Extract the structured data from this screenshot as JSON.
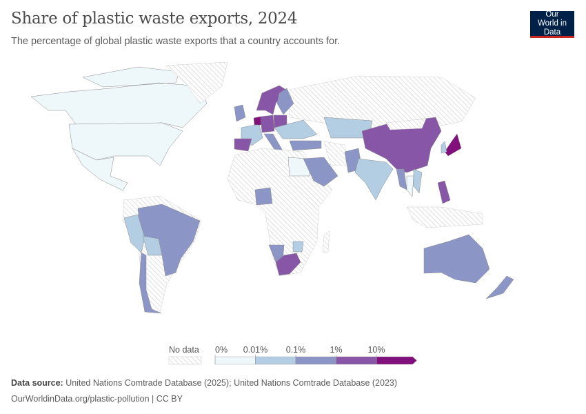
{
  "header": {
    "title": "Share of plastic waste exports, 2024",
    "subtitle": "The percentage of global plastic waste exports that a country accounts for.",
    "logo": "Our World in Data"
  },
  "chart_data": {
    "type": "map",
    "title": "Share of plastic waste exports, 2024",
    "legend": {
      "no_data_label": "No data",
      "tick_labels": [
        "0%",
        "0.01%",
        "0.1%",
        "1%",
        "10%"
      ],
      "bins": [
        {
          "range": "0–0.01%",
          "color": "#eef7fa"
        },
        {
          "range": "0.01–0.1%",
          "color": "#b3cde3"
        },
        {
          "range": "0.1–1%",
          "color": "#8c96c6"
        },
        {
          "range": "1–10%",
          "color": "#8856a7"
        },
        {
          "range": ">10%",
          "color": "#810f7c"
        }
      ],
      "no_data_color": "hatched"
    },
    "countries": [
      {
        "name": "Canada",
        "bin": 0
      },
      {
        "name": "United States",
        "bin": 0
      },
      {
        "name": "Mexico",
        "bin": 0
      },
      {
        "name": "Greenland",
        "bin": null
      },
      {
        "name": "South America (other)",
        "bin": null
      },
      {
        "name": "Brazil",
        "bin": 2
      },
      {
        "name": "Peru",
        "bin": 1
      },
      {
        "name": "Bolivia",
        "bin": 1
      },
      {
        "name": "Chile",
        "bin": 2
      },
      {
        "name": "Russia",
        "bin": null
      },
      {
        "name": "Norway/Sweden",
        "bin": 3
      },
      {
        "name": "Finland",
        "bin": 2
      },
      {
        "name": "United Kingdom",
        "bin": 2
      },
      {
        "name": "France",
        "bin": 1
      },
      {
        "name": "Spain",
        "bin": 3
      },
      {
        "name": "Netherlands",
        "bin": 4
      },
      {
        "name": "Germany",
        "bin": 3
      },
      {
        "name": "Poland",
        "bin": 3
      },
      {
        "name": "Italy",
        "bin": 2
      },
      {
        "name": "Eastern Europe",
        "bin": 1
      },
      {
        "name": "Turkey",
        "bin": 2
      },
      {
        "name": "Kazakhstan",
        "bin": 1
      },
      {
        "name": "Africa (other)",
        "bin": null
      },
      {
        "name": "Egypt",
        "bin": 0
      },
      {
        "name": "Nigeria",
        "bin": 2
      },
      {
        "name": "Namibia",
        "bin": 2
      },
      {
        "name": "Zimbabwe",
        "bin": 1
      },
      {
        "name": "South Africa",
        "bin": 3
      },
      {
        "name": "Saudi Arabia",
        "bin": 2
      },
      {
        "name": "Iran",
        "bin": null
      },
      {
        "name": "Pakistan",
        "bin": 2
      },
      {
        "name": "India",
        "bin": 1
      },
      {
        "name": "China",
        "bin": 3
      },
      {
        "name": "Mongolia",
        "bin": null
      },
      {
        "name": "Japan",
        "bin": 4
      },
      {
        "name": "South Korea",
        "bin": 1
      },
      {
        "name": "Myanmar",
        "bin": 2
      },
      {
        "name": "Thailand",
        "bin": 0
      },
      {
        "name": "Vietnam",
        "bin": 1
      },
      {
        "name": "Philippines",
        "bin": 3
      },
      {
        "name": "Indonesia",
        "bin": null
      },
      {
        "name": "Australia",
        "bin": 2
      },
      {
        "name": "New Zealand",
        "bin": 2
      }
    ]
  },
  "footer": {
    "source_label": "Data source:",
    "source_text": "United Nations Comtrade Database (2025); United Nations Comtrade Database (2023)",
    "url_license": "OurWorldinData.org/plastic-pollution | CC BY"
  }
}
